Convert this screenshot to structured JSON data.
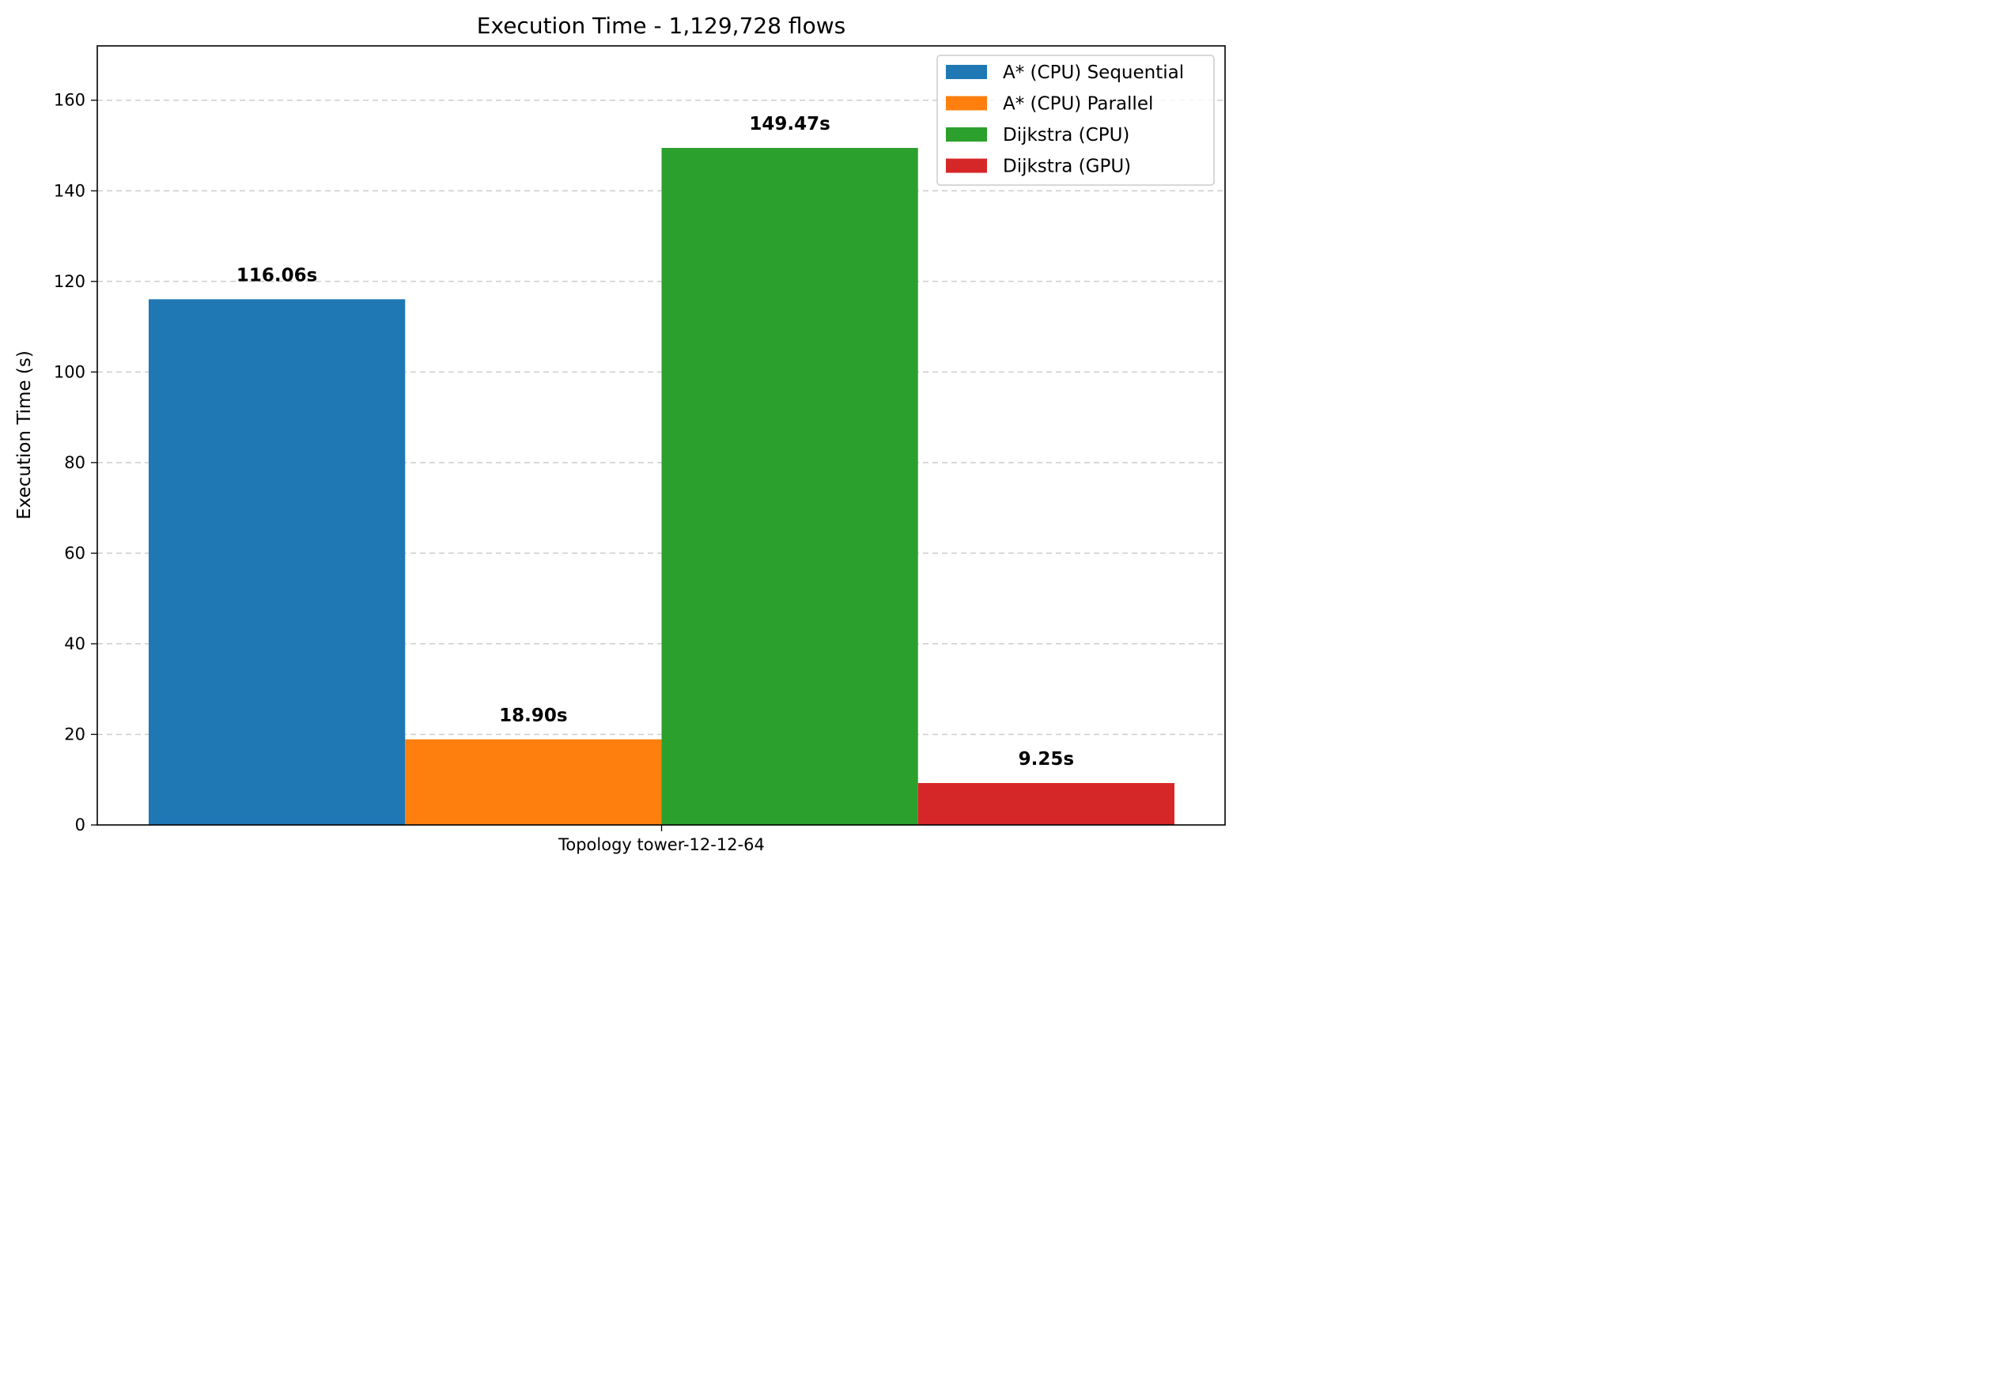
{
  "chart_data": {
    "type": "bar",
    "title": "Execution Time - 1,129,728 flows",
    "xlabel": "",
    "ylabel": "Execution Time (s)",
    "categories": [
      "Topology tower-12-12-64"
    ],
    "ylim": [
      0,
      172
    ],
    "yticks": [
      0,
      20,
      40,
      60,
      80,
      100,
      120,
      140,
      160
    ],
    "grid": "y-axis dashed",
    "legend_position": "top-right",
    "series": [
      {
        "name": "A* (CPU) Sequential",
        "values": [
          116.06
        ],
        "label": "116.06s",
        "color": "#1f77b4"
      },
      {
        "name": "A* (CPU) Parallel",
        "values": [
          18.9
        ],
        "label": "18.90s",
        "color": "#ff7f0e"
      },
      {
        "name": "Dijkstra (CPU)",
        "values": [
          149.47
        ],
        "label": "149.47s",
        "color": "#2ca02c"
      },
      {
        "name": "Dijkstra (GPU)",
        "values": [
          9.25
        ],
        "label": "9.25s",
        "color": "#d62728"
      }
    ]
  }
}
